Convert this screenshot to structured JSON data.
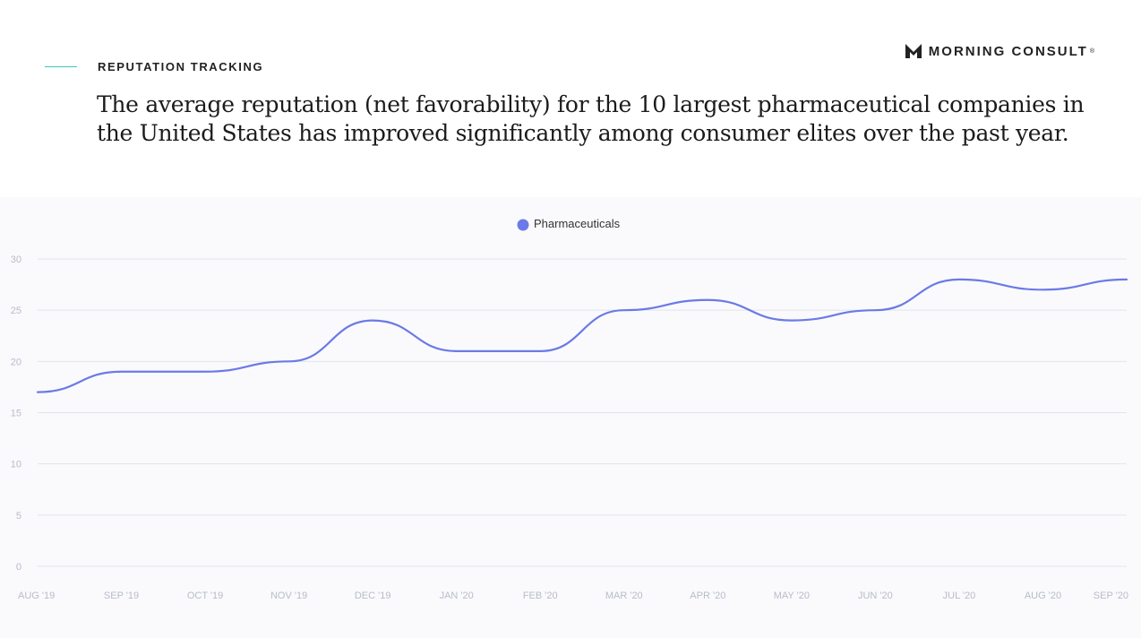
{
  "header": {
    "section_label": "REPUTATION TRACKING",
    "headline": "The average reputation (net favorability) for the 10 largest pharmaceutical companies in the United States has improved significantly among consumer elites over the past year.",
    "brand_name": "MORNING CONSULT",
    "brand_reg": "®",
    "accent_color": "#3cc7c4"
  },
  "chart_data": {
    "type": "line",
    "categories": [
      "AUG '19",
      "SEP '19",
      "OCT '19",
      "NOV '19",
      "DEC '19",
      "JAN '20",
      "FEB '20",
      "MAR '20",
      "APR '20",
      "MAY '20",
      "JUN '20",
      "JUL '20",
      "AUG '20",
      "SEP '20"
    ],
    "series": [
      {
        "name": "Pharmaceuticals",
        "values": [
          17,
          19,
          19,
          20,
          24,
          21,
          21,
          25,
          26,
          24,
          25,
          28,
          27,
          28
        ],
        "color": "#6b7ae6"
      }
    ],
    "yticks": [
      0,
      5,
      10,
      15,
      20,
      25,
      30
    ],
    "ylim": [
      0,
      30
    ],
    "grid": true,
    "legend_position": "top-center",
    "title": "",
    "xlabel": "",
    "ylabel": ""
  }
}
